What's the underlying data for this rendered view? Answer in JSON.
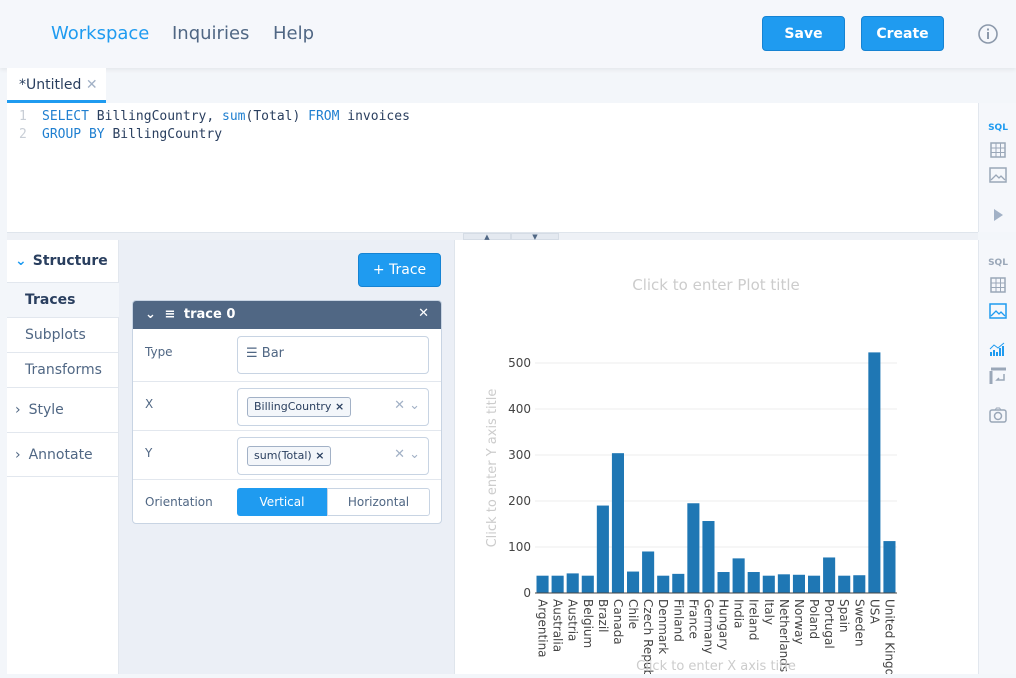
{
  "nav": {
    "items": [
      "Workspace",
      "Inquiries",
      "Help"
    ],
    "save": "Save",
    "create": "Create",
    "info_icon": "info-circle-icon",
    "accent": "#1f9bf0"
  },
  "tab": {
    "label": "*Untitled"
  },
  "editor": {
    "lines": [
      [
        {
          "t": "SELECT",
          "k": 1
        },
        {
          "t": " BillingCountry, ",
          "k": 0
        },
        {
          "t": "sum",
          "k": 1
        },
        {
          "t": "(Total) ",
          "k": 0
        },
        {
          "t": "FROM",
          "k": 1
        },
        {
          "t": " invoices",
          "k": 0
        }
      ],
      [
        {
          "t": "GROUP BY",
          "k": 1
        },
        {
          "t": " BillingCountry",
          "k": 0
        }
      ]
    ]
  },
  "sidebar": {
    "structure": "Structure",
    "items": [
      "Traces",
      "Subplots",
      "Transforms"
    ],
    "style": "Style",
    "annotate": "Annotate"
  },
  "panel": {
    "add_trace": "+ Trace",
    "trace_name": "trace 0",
    "type_label": "Type",
    "type_value": "Bar",
    "x_label": "X",
    "x_value": "BillingCountry",
    "y_label": "Y",
    "y_value": "sum(Total)",
    "orientation_label": "Orientation",
    "vertical": "Vertical",
    "horizontal": "Horizontal",
    "orientation_selected": "Vertical"
  },
  "plot": {
    "title_placeholder": "Click to enter Plot title",
    "x_placeholder": "Click to enter X axis title",
    "y_placeholder": "Click to enter Y axis title"
  },
  "chart_data": {
    "type": "bar",
    "categories": [
      "Argentina",
      "Australia",
      "Austria",
      "Belgium",
      "Brazil",
      "Canada",
      "Chile",
      "Czech Republic",
      "Denmark",
      "Finland",
      "France",
      "Germany",
      "Hungary",
      "India",
      "Ireland",
      "Italy",
      "Netherlands",
      "Norway",
      "Poland",
      "Portugal",
      "Spain",
      "Sweden",
      "USA",
      "United Kingdom"
    ],
    "values": [
      37.62,
      37.62,
      42.62,
      37.62,
      190.1,
      303.96,
      46.62,
      90.24,
      37.62,
      41.62,
      195.1,
      156.48,
      45.62,
      75.26,
      45.62,
      37.62,
      40.62,
      39.62,
      37.62,
      77.24,
      37.62,
      38.62,
      523.06,
      112.86
    ],
    "yticks": [
      0,
      100,
      200,
      300,
      400,
      500
    ],
    "ylim": [
      0,
      540
    ],
    "color": "#1f77b4",
    "grid": true
  }
}
